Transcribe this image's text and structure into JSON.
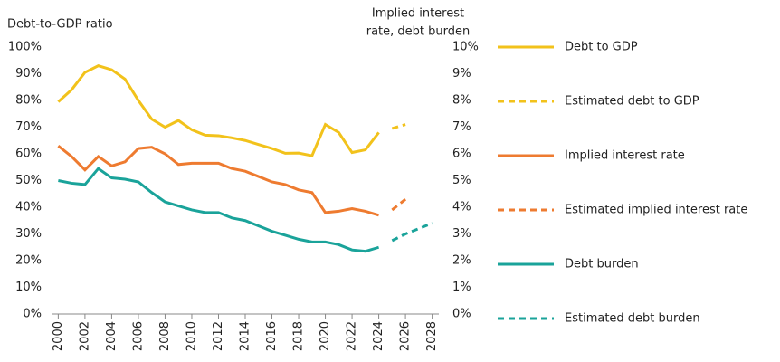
{
  "chart_data": {
    "type": "line",
    "y_label": "Debt-to-GDP ratio",
    "y2_label": [
      "Implied interest",
      "rate, debt burden"
    ],
    "x": [
      2000,
      2001,
      2002,
      2003,
      2004,
      2005,
      2006,
      2007,
      2008,
      2009,
      2010,
      2011,
      2012,
      2013,
      2014,
      2015,
      2016,
      2017,
      2018,
      2019,
      2020,
      2021,
      2022,
      2023,
      2024,
      2025,
      2026,
      2027,
      2028
    ],
    "xlim": [
      1999.5,
      2028.5
    ],
    "xticks": [
      2000,
      2002,
      2004,
      2006,
      2008,
      2010,
      2012,
      2014,
      2016,
      2018,
      2020,
      2022,
      2024,
      2026,
      2028
    ],
    "ylim": [
      0,
      100
    ],
    "yticks": [
      {
        "value": 0,
        "label": "0%"
      },
      {
        "value": 10,
        "label": "10%"
      },
      {
        "value": 20,
        "label": "20%"
      },
      {
        "value": 30,
        "label": "30%"
      },
      {
        "value": 40,
        "label": "40%"
      },
      {
        "value": 50,
        "label": "50%"
      },
      {
        "value": 60,
        "label": "60%"
      },
      {
        "value": 70,
        "label": "70%"
      },
      {
        "value": 80,
        "label": "80%"
      },
      {
        "value": 90,
        "label": "90%"
      },
      {
        "value": 100,
        "label": "100%"
      }
    ],
    "y2lim": [
      0,
      10
    ],
    "y2ticks": [
      {
        "value": 0,
        "label": "0%"
      },
      {
        "value": 1,
        "label": "1%"
      },
      {
        "value": 2,
        "label": "2%"
      },
      {
        "value": 3,
        "label": "3%"
      },
      {
        "value": 4,
        "label": "4%"
      },
      {
        "value": 5,
        "label": "5%"
      },
      {
        "value": 6,
        "label": "6%"
      },
      {
        "value": 7,
        "label": "7%"
      },
      {
        "value": 8,
        "label": "8%"
      },
      {
        "value": 9,
        "label": "9%"
      },
      {
        "value": 10,
        "label": "10%"
      }
    ],
    "grid": false,
    "legend": "right",
    "series": [
      {
        "name": "Debt to GDP",
        "color": "#f2c21b",
        "style": "solid",
        "axis": "y",
        "values": [
          79.5,
          84,
          90.5,
          93,
          91.5,
          88,
          80,
          73,
          70,
          72.5,
          69,
          67,
          66.8,
          66,
          65,
          63.5,
          62,
          60.2,
          60.3,
          59.3,
          71,
          68,
          60.5,
          61.5,
          68,
          null,
          null,
          null,
          null
        ]
      },
      {
        "name": "Estimated debt to GDP",
        "color": "#f2c21b",
        "style": "dashed",
        "axis": "y",
        "values": [
          null,
          null,
          null,
          null,
          null,
          null,
          null,
          null,
          null,
          null,
          null,
          null,
          null,
          null,
          null,
          null,
          null,
          null,
          null,
          null,
          null,
          null,
          null,
          null,
          null,
          69.5,
          71,
          null,
          null
        ]
      },
      {
        "name": "Implied interest rate",
        "color": "#ee7b30",
        "style": "solid",
        "axis": "y2",
        "values": [
          6.3,
          5.9,
          5.4,
          5.9,
          5.55,
          5.7,
          6.2,
          6.25,
          6.0,
          5.6,
          5.65,
          5.65,
          5.65,
          5.45,
          5.35,
          5.15,
          4.95,
          4.85,
          4.65,
          4.55,
          3.8,
          3.85,
          3.95,
          3.85,
          3.7,
          null,
          null,
          null,
          null
        ]
      },
      {
        "name": "Estimated implied interest rate",
        "color": "#ee7b30",
        "style": "dashed",
        "axis": "y2",
        "values": [
          null,
          null,
          null,
          null,
          null,
          null,
          null,
          null,
          null,
          null,
          null,
          null,
          null,
          null,
          null,
          null,
          null,
          null,
          null,
          null,
          null,
          null,
          null,
          null,
          null,
          3.9,
          4.3,
          null,
          null
        ]
      },
      {
        "name": "Debt burden",
        "color": "#1aa39a",
        "style": "solid",
        "axis": "y2",
        "values": [
          5.0,
          4.9,
          4.85,
          5.45,
          5.1,
          5.05,
          4.95,
          4.55,
          4.2,
          4.05,
          3.9,
          3.8,
          3.8,
          3.6,
          3.5,
          3.3,
          3.1,
          2.95,
          2.8,
          2.7,
          2.7,
          2.6,
          2.4,
          2.35,
          2.5,
          null,
          null,
          null,
          null
        ]
      },
      {
        "name": "Estimated debt burden",
        "color": "#1aa39a",
        "style": "dashed",
        "axis": "y2",
        "values": [
          null,
          null,
          null,
          null,
          null,
          null,
          null,
          null,
          null,
          null,
          null,
          null,
          null,
          null,
          null,
          null,
          null,
          null,
          null,
          null,
          null,
          null,
          null,
          null,
          null,
          2.75,
          3.0,
          3.2,
          3.4
        ]
      }
    ]
  }
}
